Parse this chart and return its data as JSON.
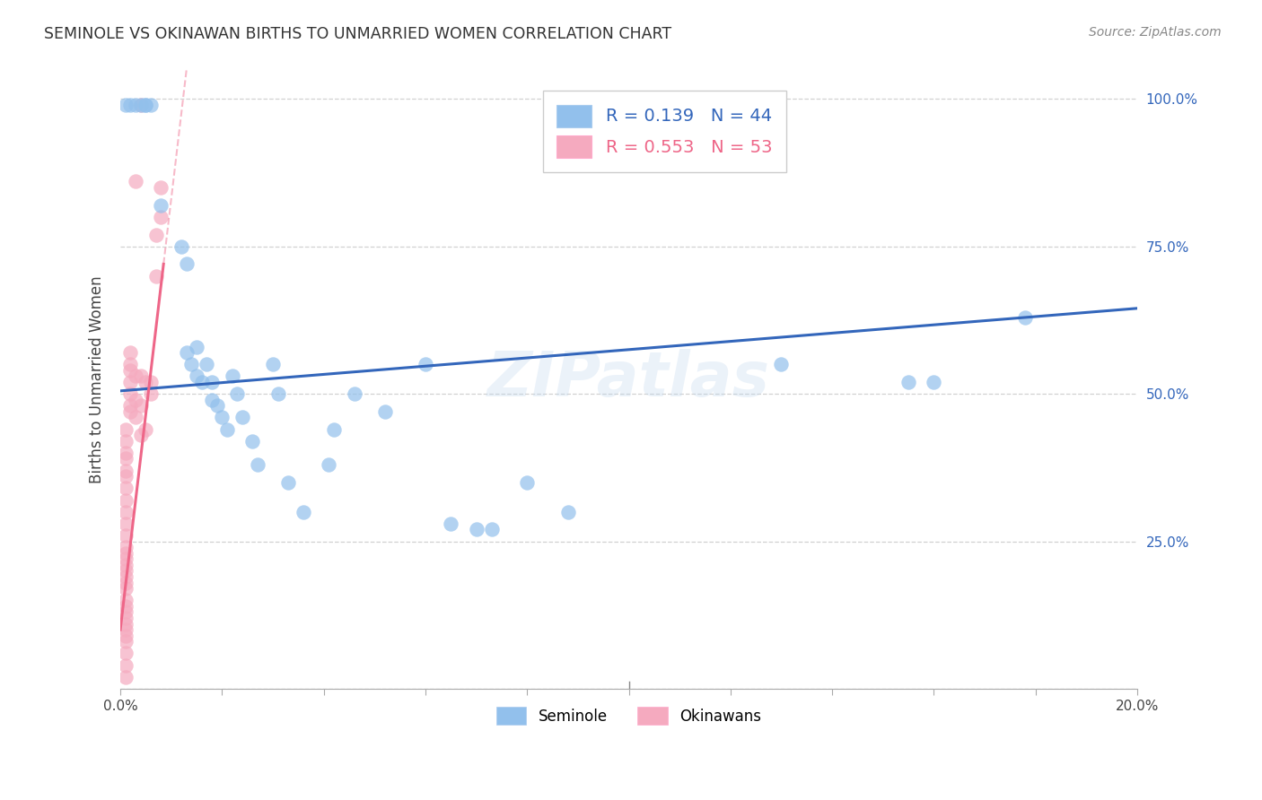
{
  "title": "SEMINOLE VS OKINAWAN BIRTHS TO UNMARRIED WOMEN CORRELATION CHART",
  "source": "Source: ZipAtlas.com",
  "ylabel": "Births to Unmarried Women",
  "xmin": 0.0,
  "xmax": 0.2,
  "ymin": 0.0,
  "ymax": 1.05,
  "ytick_positions": [
    0.0,
    0.25,
    0.5,
    0.75,
    1.0
  ],
  "ytick_labels_right": [
    "",
    "25.0%",
    "50.0%",
    "75.0%",
    "100.0%"
  ],
  "xtick_major": [
    0.0,
    0.2
  ],
  "xtick_major_labels": [
    "0.0%",
    "20.0%"
  ],
  "xtick_minor": [
    0.02,
    0.04,
    0.06,
    0.08,
    0.1,
    0.12,
    0.14,
    0.16,
    0.18
  ],
  "watermark": "ZIPatlas",
  "legend_seminole_r": "R = 0.139",
  "legend_seminole_n": "N = 44",
  "legend_okinawan_r": "R = 0.553",
  "legend_okinawan_n": "N = 53",
  "seminole_color": "#92C0EC",
  "okinawan_color": "#F5AABF",
  "seminole_line_color": "#3366BB",
  "okinawan_line_color": "#EE6688",
  "background_color": "#FFFFFF",
  "grid_color": "#CCCCCC",
  "seminole_scatter": [
    [
      0.001,
      0.99
    ],
    [
      0.002,
      0.99
    ],
    [
      0.003,
      0.99
    ],
    [
      0.004,
      0.99
    ],
    [
      0.005,
      0.99
    ],
    [
      0.005,
      0.99
    ],
    [
      0.006,
      0.99
    ],
    [
      0.008,
      0.82
    ],
    [
      0.012,
      0.75
    ],
    [
      0.013,
      0.72
    ],
    [
      0.013,
      0.57
    ],
    [
      0.014,
      0.55
    ],
    [
      0.015,
      0.58
    ],
    [
      0.015,
      0.53
    ],
    [
      0.016,
      0.52
    ],
    [
      0.017,
      0.55
    ],
    [
      0.018,
      0.52
    ],
    [
      0.018,
      0.49
    ],
    [
      0.019,
      0.48
    ],
    [
      0.02,
      0.46
    ],
    [
      0.021,
      0.44
    ],
    [
      0.022,
      0.53
    ],
    [
      0.023,
      0.5
    ],
    [
      0.024,
      0.46
    ],
    [
      0.026,
      0.42
    ],
    [
      0.027,
      0.38
    ],
    [
      0.03,
      0.55
    ],
    [
      0.031,
      0.5
    ],
    [
      0.033,
      0.35
    ],
    [
      0.036,
      0.3
    ],
    [
      0.041,
      0.38
    ],
    [
      0.042,
      0.44
    ],
    [
      0.046,
      0.5
    ],
    [
      0.052,
      0.47
    ],
    [
      0.06,
      0.55
    ],
    [
      0.065,
      0.28
    ],
    [
      0.07,
      0.27
    ],
    [
      0.073,
      0.27
    ],
    [
      0.08,
      0.35
    ],
    [
      0.088,
      0.3
    ],
    [
      0.13,
      0.55
    ],
    [
      0.155,
      0.52
    ],
    [
      0.16,
      0.52
    ],
    [
      0.178,
      0.63
    ]
  ],
  "okinawan_scatter": [
    [
      0.001,
      0.02
    ],
    [
      0.001,
      0.04
    ],
    [
      0.001,
      0.06
    ],
    [
      0.001,
      0.08
    ],
    [
      0.001,
      0.09
    ],
    [
      0.001,
      0.1
    ],
    [
      0.001,
      0.11
    ],
    [
      0.001,
      0.12
    ],
    [
      0.001,
      0.13
    ],
    [
      0.001,
      0.14
    ],
    [
      0.001,
      0.15
    ],
    [
      0.001,
      0.17
    ],
    [
      0.001,
      0.18
    ],
    [
      0.001,
      0.19
    ],
    [
      0.001,
      0.2
    ],
    [
      0.001,
      0.21
    ],
    [
      0.001,
      0.22
    ],
    [
      0.001,
      0.23
    ],
    [
      0.001,
      0.24
    ],
    [
      0.001,
      0.26
    ],
    [
      0.001,
      0.28
    ],
    [
      0.001,
      0.3
    ],
    [
      0.001,
      0.32
    ],
    [
      0.001,
      0.34
    ],
    [
      0.001,
      0.37
    ],
    [
      0.001,
      0.4
    ],
    [
      0.001,
      0.42
    ],
    [
      0.001,
      0.44
    ],
    [
      0.002,
      0.47
    ],
    [
      0.002,
      0.48
    ],
    [
      0.002,
      0.5
    ],
    [
      0.002,
      0.52
    ],
    [
      0.002,
      0.54
    ],
    [
      0.002,
      0.55
    ],
    [
      0.002,
      0.57
    ],
    [
      0.003,
      0.46
    ],
    [
      0.003,
      0.49
    ],
    [
      0.003,
      0.53
    ],
    [
      0.004,
      0.43
    ],
    [
      0.004,
      0.48
    ],
    [
      0.004,
      0.53
    ],
    [
      0.005,
      0.44
    ],
    [
      0.005,
      0.52
    ],
    [
      0.006,
      0.5
    ],
    [
      0.006,
      0.52
    ],
    [
      0.007,
      0.7
    ],
    [
      0.007,
      0.77
    ],
    [
      0.008,
      0.8
    ],
    [
      0.008,
      0.85
    ],
    [
      0.003,
      0.86
    ],
    [
      0.004,
      0.99
    ],
    [
      0.001,
      0.36
    ],
    [
      0.001,
      0.39
    ]
  ],
  "seminole_trend_x": [
    0.0,
    0.2
  ],
  "seminole_trend_y": [
    0.505,
    0.645
  ],
  "okinawan_trend_x": [
    0.0,
    0.0085
  ],
  "okinawan_trend_y": [
    0.1,
    0.72
  ]
}
